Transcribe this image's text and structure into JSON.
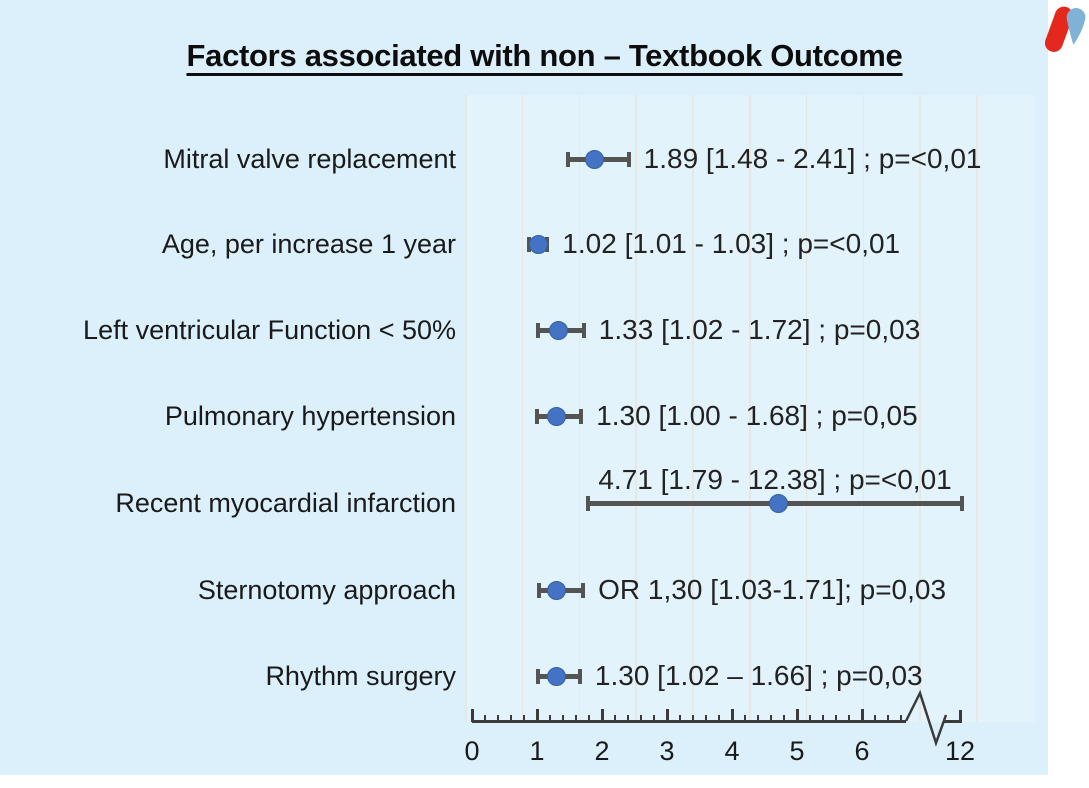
{
  "title": "Factors associated with non – Textbook Outcome",
  "chart_data": {
    "type": "forest",
    "title": "Factors associated with non – Textbook Outcome",
    "xlabel": "",
    "ylabel": "",
    "x_axis": {
      "tick_labels": [
        "0",
        "1",
        "2",
        "3",
        "4",
        "5",
        "6",
        "12"
      ],
      "minor_tick_step": 0.2,
      "axis_break_between": [
        "6",
        "12"
      ],
      "range_shown": [
        0,
        6.6
      ],
      "grid": true
    },
    "rows": [
      {
        "label": "Mitral valve replacement",
        "or": 1.89,
        "ci_low": 1.48,
        "ci_high": 2.41,
        "annotation": "1.89 [1.48 - 2.41] ; p=<0,01"
      },
      {
        "label": "Age, per increase 1 year",
        "or": 1.02,
        "ci_low": 1.01,
        "ci_high": 1.03,
        "annotation": "1.02 [1.01 - 1.03] ; p=<0,01"
      },
      {
        "label": "Left ventricular Function < 50%",
        "or": 1.33,
        "ci_low": 1.02,
        "ci_high": 1.72,
        "annotation": "1.33 [1.02 - 1.72] ; p=0,03"
      },
      {
        "label": "Pulmonary hypertension",
        "or": 1.3,
        "ci_low": 1.0,
        "ci_high": 1.68,
        "annotation": "1.30 [1.00 - 1.68] ; p=0,05"
      },
      {
        "label": "Recent myocardial infarction",
        "or": 4.71,
        "ci_low": 1.79,
        "ci_high": 12.38,
        "annotation": "4.71 [1.79 - 12.38] ; p=<0,01",
        "annotation_above": true
      },
      {
        "label": "Sternotomy approach",
        "or": 1.3,
        "ci_low": 1.03,
        "ci_high": 1.71,
        "annotation": "OR 1,30 [1.03-1.71]; p=0,03"
      },
      {
        "label": "Rhythm surgery",
        "or": 1.3,
        "ci_low": 1.02,
        "ci_high": 1.66,
        "annotation": "1.30 [1.02 – 1.66] ; p=0,03"
      }
    ],
    "legend": null,
    "colors": {
      "background": "#dbf0fb",
      "marker": "#4472c4",
      "marker_edge": "#35619f",
      "bar": "#545454",
      "axis": "#3b3b3b",
      "gridline": "#e9e7e3",
      "text": "#1a1a1a"
    }
  },
  "logo": {
    "name": "heart-valve-brand-mark",
    "red": "#e5281e",
    "blue": "#7fb2d4"
  }
}
